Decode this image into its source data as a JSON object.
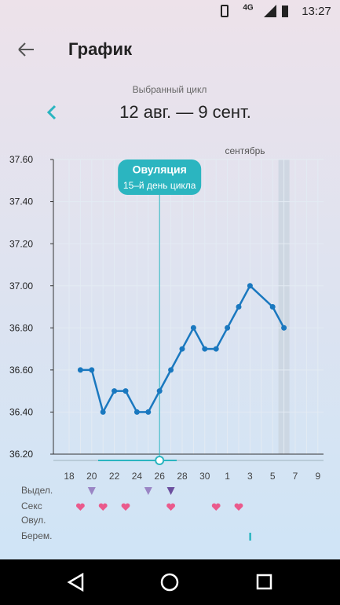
{
  "status_bar": {
    "network": "4G",
    "time": "13:27"
  },
  "header": {
    "title": "График"
  },
  "cycle": {
    "label": "Выбранный цикл",
    "range": "12 авг. — 9 сент."
  },
  "chart_data": {
    "type": "line",
    "month_label": "сентябрь",
    "annotation": {
      "title": "Овуляция",
      "subtitle": "15–й день цикла"
    },
    "categories": [
      "18",
      null,
      "20",
      null,
      "22",
      null,
      "24",
      null,
      "26",
      null,
      "28",
      null,
      "30",
      null,
      "1",
      null,
      "3",
      null,
      "5",
      null,
      "7",
      null,
      "9"
    ],
    "series": [
      {
        "color": "#1a78bf",
        "values": [
          null,
          36.6,
          36.6,
          36.4,
          36.5,
          36.5,
          36.4,
          36.4,
          36.5,
          36.6,
          36.7,
          36.8,
          36.7,
          36.7,
          36.8,
          36.9,
          37.0,
          null,
          36.9,
          36.8,
          null,
          null,
          null
        ]
      }
    ],
    "ylim": [
      36.2,
      37.6
    ],
    "yticks": [
      {
        "value": 36.2,
        "label": "36.20"
      },
      {
        "value": 36.4,
        "label": "36.40"
      },
      {
        "value": 36.6,
        "label": "36.60"
      },
      {
        "value": 36.8,
        "label": "36.80"
      },
      {
        "value": 37.0,
        "label": "37.00"
      },
      {
        "value": 37.2,
        "label": "37.20"
      },
      {
        "value": 37.4,
        "label": "37.40"
      },
      {
        "value": 37.6,
        "label": "37.60"
      }
    ],
    "grid": true
  },
  "tracking_rows": [
    "Выдел.",
    "Секс",
    "Овул.",
    "Берем."
  ]
}
